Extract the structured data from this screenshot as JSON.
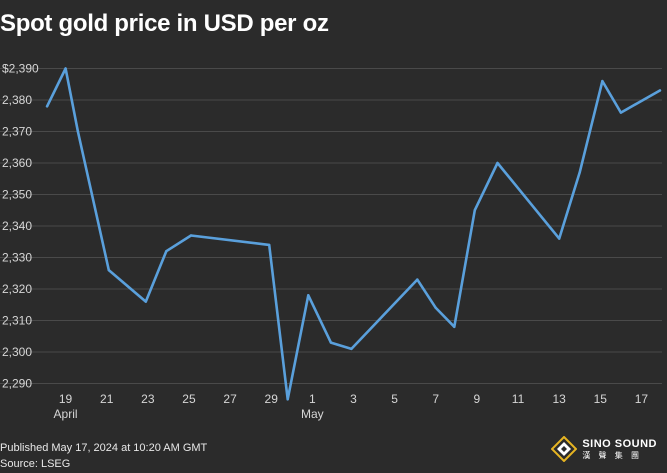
{
  "title": "Spot gold price in USD per oz",
  "footer": {
    "published": "Published May 17, 2024 at 10:20 AM GMT",
    "source": "Source: LSEG"
  },
  "logo": {
    "name": "SINO SOUND",
    "cn": "漢 聲 集 團"
  },
  "colors": {
    "background": "#2b2b2b",
    "line": "#5aa0dc",
    "grid": "#4a4a4a"
  },
  "chart_data": {
    "type": "line",
    "title": "Spot gold price in USD per oz",
    "xlabel": "",
    "ylabel": "",
    "ylim": [
      2287,
      2393
    ],
    "xlim": [
      0,
      30
    ],
    "grid": true,
    "yticks": [
      {
        "value": 2390,
        "label": "$2,390"
      },
      {
        "value": 2380,
        "label": "2,380"
      },
      {
        "value": 2370,
        "label": "2,370"
      },
      {
        "value": 2360,
        "label": "2,360"
      },
      {
        "value": 2350,
        "label": "2,350"
      },
      {
        "value": 2340,
        "label": "2,340"
      },
      {
        "value": 2330,
        "label": "2,330"
      },
      {
        "value": 2320,
        "label": "2,320"
      },
      {
        "value": 2310,
        "label": "2,310"
      },
      {
        "value": 2300,
        "label": "2,300"
      },
      {
        "value": 2290,
        "label": "2,290"
      }
    ],
    "xticks": [
      {
        "day": 1,
        "label": "19",
        "sub": "April"
      },
      {
        "day": 3,
        "label": "21",
        "sub": ""
      },
      {
        "day": 5,
        "label": "23",
        "sub": ""
      },
      {
        "day": 7,
        "label": "25",
        "sub": ""
      },
      {
        "day": 9,
        "label": "27",
        "sub": ""
      },
      {
        "day": 11,
        "label": "29",
        "sub": ""
      },
      {
        "day": 13,
        "label": "1",
        "sub": "May"
      },
      {
        "day": 15,
        "label": "3",
        "sub": ""
      },
      {
        "day": 17,
        "label": "5",
        "sub": ""
      },
      {
        "day": 19,
        "label": "7",
        "sub": ""
      },
      {
        "day": 21,
        "label": "9",
        "sub": ""
      },
      {
        "day": 23,
        "label": "11",
        "sub": ""
      },
      {
        "day": 25,
        "label": "13",
        "sub": ""
      },
      {
        "day": 27,
        "label": "15",
        "sub": ""
      },
      {
        "day": 29,
        "label": "17",
        "sub": ""
      }
    ],
    "series": [
      {
        "name": "Spot gold",
        "points": [
          {
            "x": 0.1,
            "y": 2378
          },
          {
            "x": 1.0,
            "y": 2390
          },
          {
            "x": 1.6,
            "y": 2370
          },
          {
            "x": 3.1,
            "y": 2326
          },
          {
            "x": 4.0,
            "y": 2321
          },
          {
            "x": 4.9,
            "y": 2316
          },
          {
            "x": 5.9,
            "y": 2332
          },
          {
            "x": 7.1,
            "y": 2337
          },
          {
            "x": 10.9,
            "y": 2334
          },
          {
            "x": 11.8,
            "y": 2285
          },
          {
            "x": 12.8,
            "y": 2318
          },
          {
            "x": 13.9,
            "y": 2303
          },
          {
            "x": 14.9,
            "y": 2301
          },
          {
            "x": 18.1,
            "y": 2323
          },
          {
            "x": 19.0,
            "y": 2314
          },
          {
            "x": 19.9,
            "y": 2308
          },
          {
            "x": 20.9,
            "y": 2345
          },
          {
            "x": 22.0,
            "y": 2360
          },
          {
            "x": 25.0,
            "y": 2336
          },
          {
            "x": 26.0,
            "y": 2357
          },
          {
            "x": 27.1,
            "y": 2386
          },
          {
            "x": 28.0,
            "y": 2376
          },
          {
            "x": 29.9,
            "y": 2383
          }
        ]
      }
    ]
  }
}
